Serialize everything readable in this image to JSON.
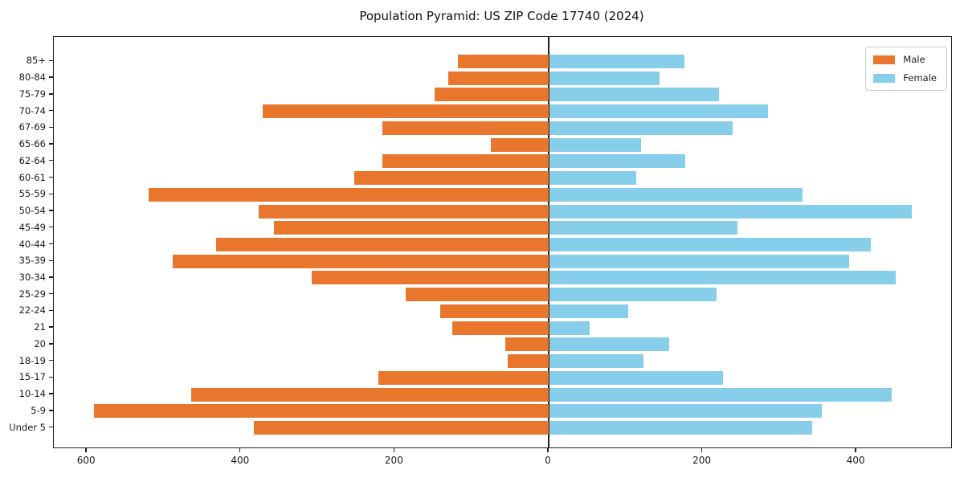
{
  "title": "Population Pyramid: US ZIP Code 17740 (2024)",
  "legend": {
    "male_label": "Male",
    "female_label": "Female",
    "position": "upper right"
  },
  "colors": {
    "male": "#e8762d",
    "female": "#87ceeb",
    "axis": "#1f1f1f"
  },
  "chart_data": {
    "type": "bar",
    "subtype": "population-pyramid-horizontal",
    "title": "Population Pyramid: US ZIP Code 17740 (2024)",
    "categories_top_to_bottom": [
      "85+",
      "80-84",
      "75-79",
      "70-74",
      "67-69",
      "65-66",
      "62-64",
      "60-61",
      "55-59",
      "50-54",
      "45-49",
      "40-44",
      "35-39",
      "30-34",
      "25-29",
      "22-24",
      "21",
      "20",
      "18-19",
      "15-17",
      "10-14",
      "5-9",
      "Under 5"
    ],
    "series": [
      {
        "name": "Male",
        "side": "left",
        "color": "#e8762d",
        "values": [
          118,
          130,
          148,
          372,
          216,
          75,
          216,
          253,
          520,
          377,
          357,
          432,
          489,
          308,
          186,
          141,
          125,
          56,
          53,
          221,
          464,
          591,
          383
        ]
      },
      {
        "name": "Female",
        "side": "right",
        "color": "#87ceeb",
        "values": [
          176,
          143,
          221,
          284,
          238,
          119,
          177,
          113,
          329,
          471,
          245,
          418,
          390,
          450,
          217,
          103,
          52,
          156,
          122,
          226,
          445,
          354,
          342
        ]
      }
    ],
    "x_tick_values": [
      -600,
      -400,
      -200,
      0,
      200,
      400
    ],
    "x_tick_labels": [
      "600",
      "400",
      "200",
      "0",
      "200",
      "400"
    ],
    "xlim": [
      -643,
      523
    ],
    "grid": false,
    "legend_position": "upper right"
  }
}
